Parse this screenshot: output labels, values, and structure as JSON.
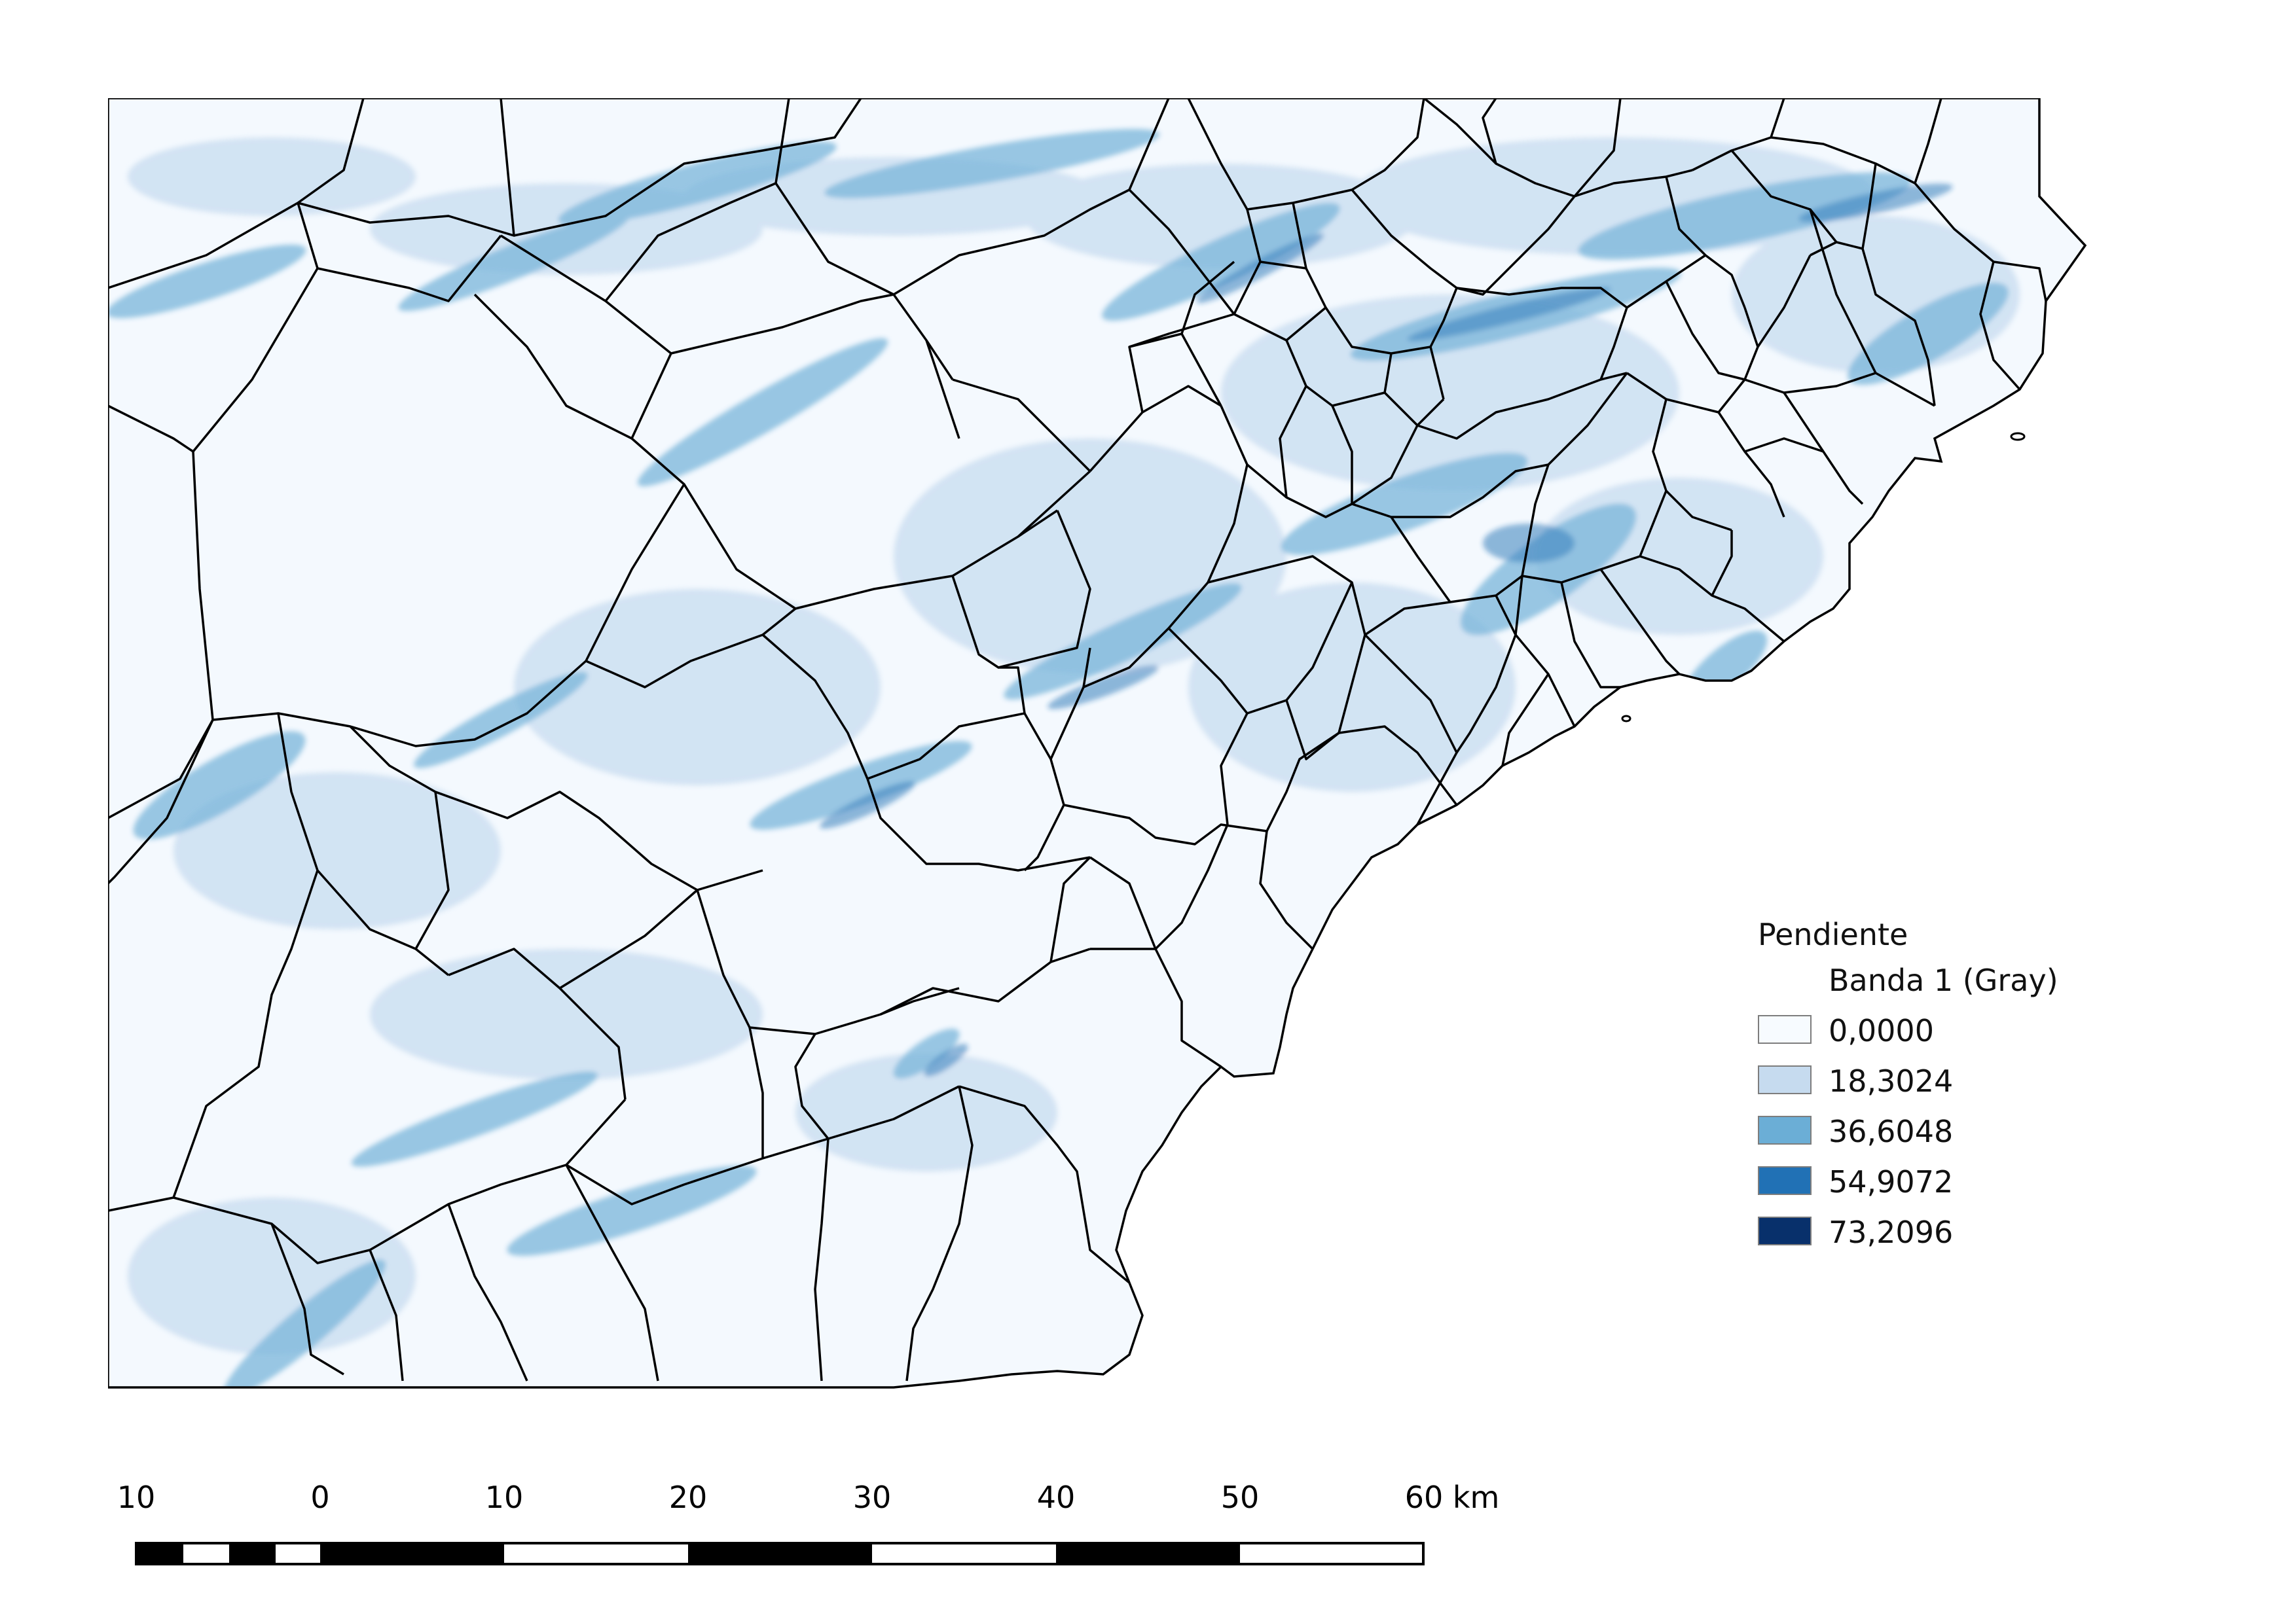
{
  "legend": {
    "title": "Pendiente",
    "band_label": "Banda 1 (Gray)",
    "entries": [
      {
        "value": "0,0000",
        "color": "#f7fbff"
      },
      {
        "value": "18,3024",
        "color": "#c6dbef"
      },
      {
        "value": "36,6048",
        "color": "#6baed6"
      },
      {
        "value": "54,9072",
        "color": "#2171b5"
      },
      {
        "value": "73,2096",
        "color": "#08306b"
      }
    ]
  },
  "scale_bar": {
    "labels": [
      "10",
      "0",
      "10",
      "20",
      "30",
      "40",
      "50",
      "60 km"
    ]
  },
  "map": {
    "raster_theme": "slope",
    "colors": {
      "background": "#f4f9fe",
      "light": "#c6dbef",
      "mid": "#6baed6",
      "strong": "#2171b5",
      "dark": "#08306b",
      "boundary": "#000000"
    }
  }
}
